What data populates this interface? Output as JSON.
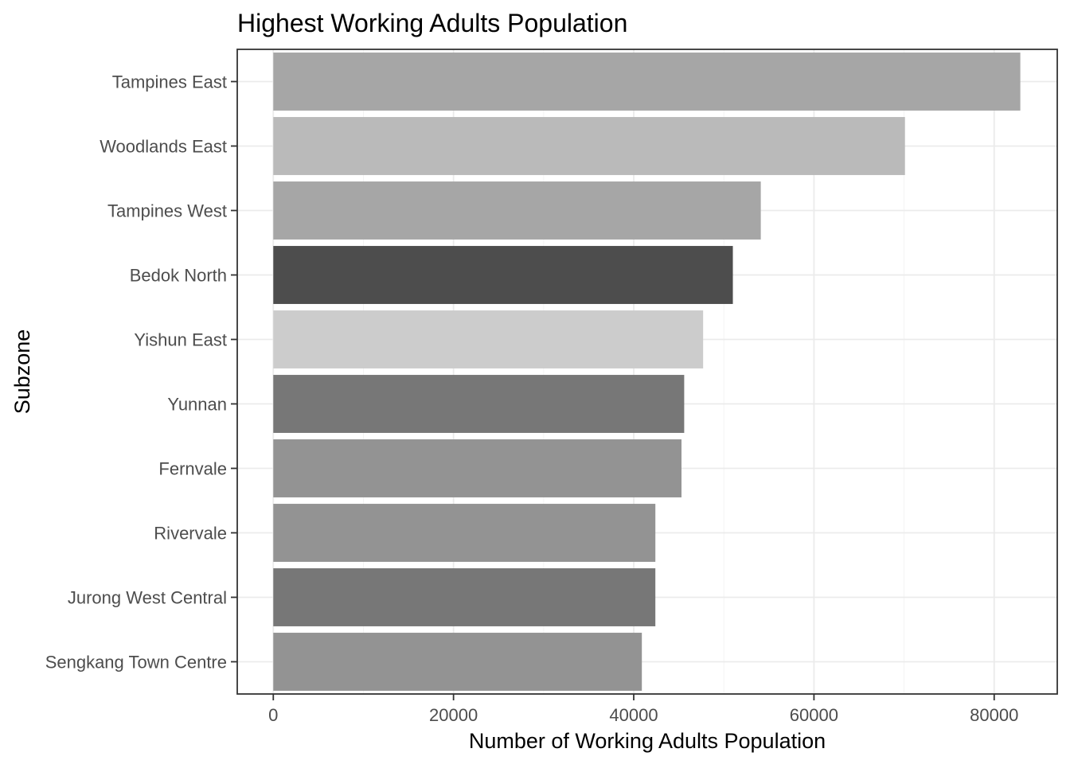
{
  "chart_data": {
    "type": "bar",
    "orientation": "horizontal",
    "title": "Highest Working Adults Population",
    "xlabel": "Number of Working Adults Population",
    "ylabel": "Subzone",
    "categories": [
      "Tampines East",
      "Woodlands East",
      "Tampines West",
      "Bedok North",
      "Yishun East",
      "Yunnan",
      "Fernvale",
      "Rivervale",
      "Jurong West Central",
      "Sengkang Town Centre"
    ],
    "values": [
      82900,
      70100,
      54100,
      51000,
      47700,
      45600,
      45300,
      42400,
      42400,
      40900
    ],
    "bar_colors": [
      "#a6a6a6",
      "#bababa",
      "#a6a6a6",
      "#4d4d4d",
      "#cccccc",
      "#777777",
      "#939393",
      "#939393",
      "#777777",
      "#939393"
    ],
    "xlim": [
      -4000,
      87000
    ],
    "xticks": [
      0,
      20000,
      40000,
      60000,
      80000
    ],
    "xtick_labels": [
      "0",
      "20000",
      "40000",
      "60000",
      "80000"
    ],
    "grid": true,
    "legend": "none"
  }
}
